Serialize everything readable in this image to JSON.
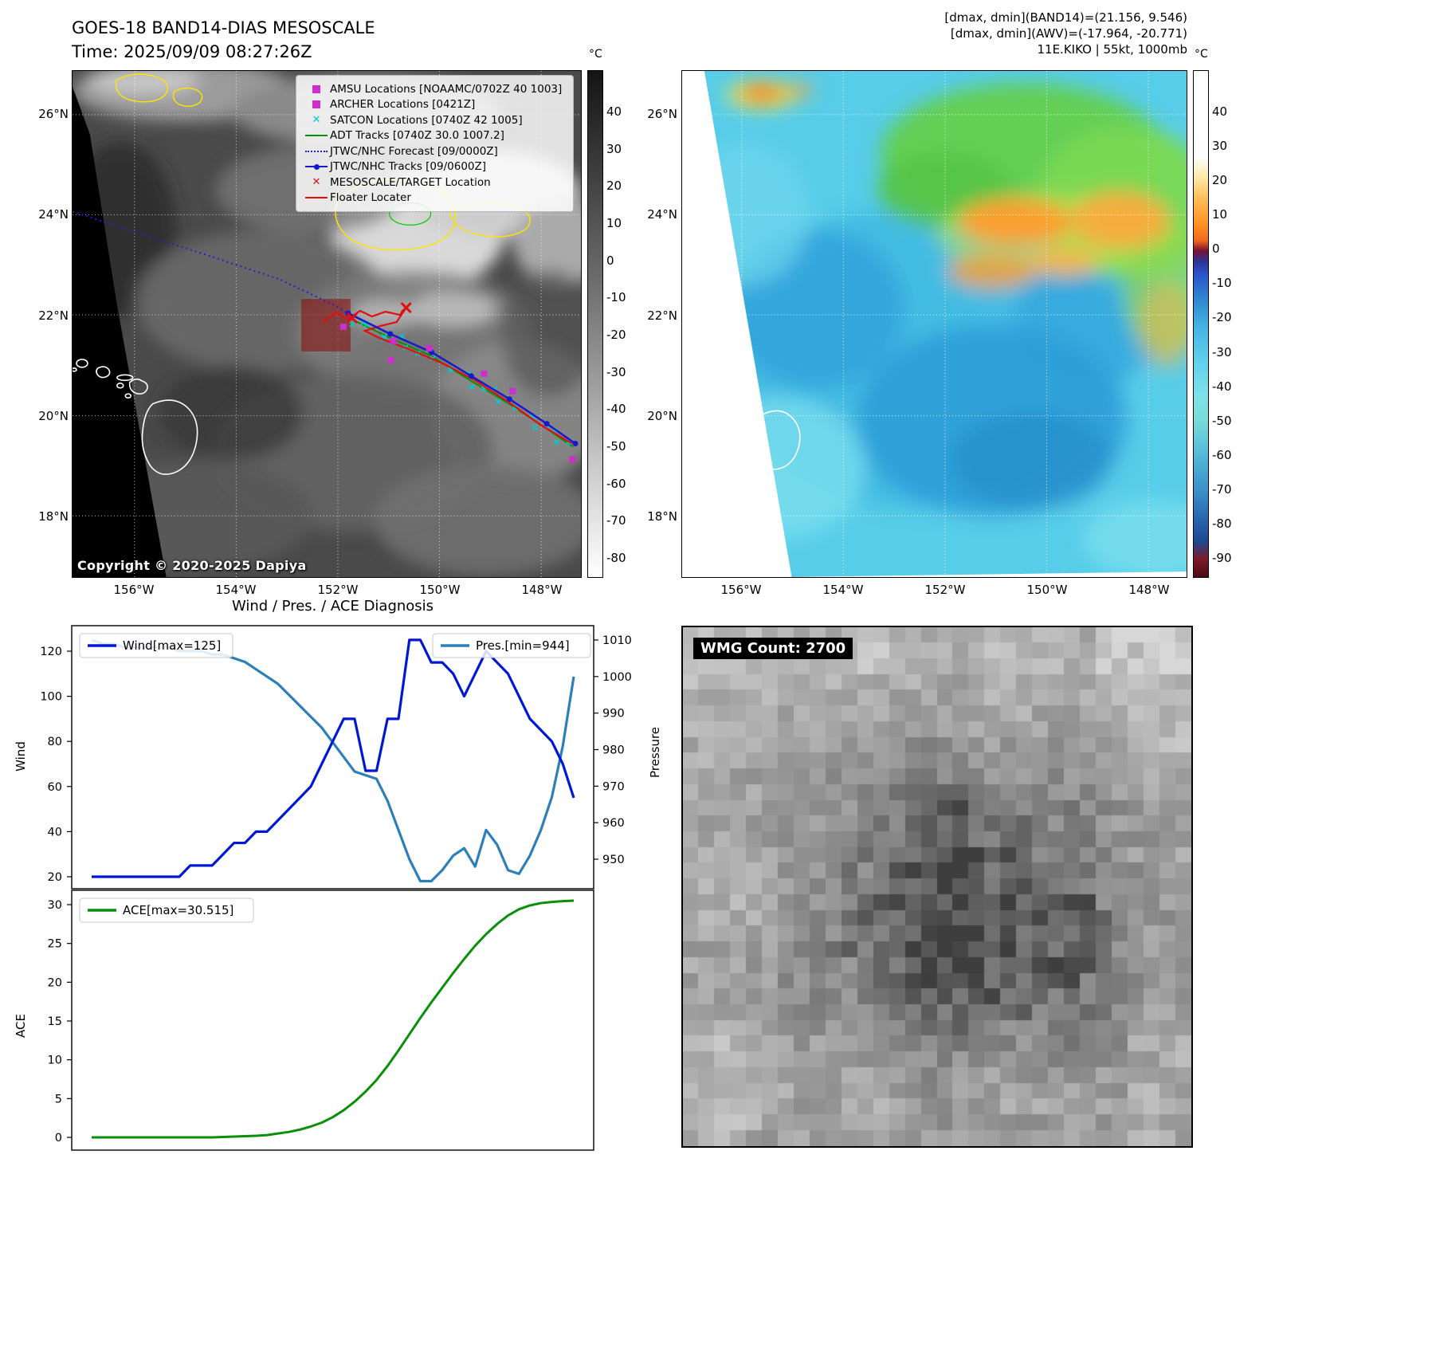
{
  "header": {
    "title1": "GOES-18 BAND14-DIAS MESOSCALE",
    "title2": "Time: 2025/09/09 08:27:26Z",
    "right1": "[dmax, dmin](BAND14)=(21.156, 9.546)",
    "right2": "[dmax, dmin](AWV)=(-17.964, -20.771)",
    "right3": "11E.KIKO | 55kt, 1000mb"
  },
  "maps": {
    "lat_ticks": [
      "26°N",
      "24°N",
      "22°N",
      "20°N",
      "18°N"
    ],
    "lon_ticks": [
      "156°W",
      "154°W",
      "152°W",
      "150°W",
      "148°W"
    ],
    "band14": {
      "colorbar_unit": "°C",
      "colorbar_ticks": [
        40,
        30,
        20,
        10,
        0,
        -10,
        -20,
        -30,
        -40,
        -50,
        -60,
        -70,
        -80
      ],
      "legend": [
        {
          "marker": "square-magenta",
          "label": "AMSU Locations [NOAAMC/0702Z 40 1003]"
        },
        {
          "marker": "square-magenta",
          "label": "ARCHER Locations [0421Z]"
        },
        {
          "marker": "x-cyan",
          "label": "SATCON Locations [0740Z 42 1005]"
        },
        {
          "marker": "line-green",
          "label": "ADT Tracks [0740Z 30.0 1007.2]"
        },
        {
          "marker": "dotted-blue",
          "label": "JTWC/NHC Forecast [09/0000Z]"
        },
        {
          "marker": "line-dot-blue",
          "label": "JTWC/NHC Tracks [09/0600Z]"
        },
        {
          "marker": "x-red",
          "label": "MESOSCALE/TARGET Location"
        },
        {
          "marker": "line-red",
          "label": "Floater Locater"
        }
      ],
      "copyright": "Copyright © 2020-2025 Dapiya"
    },
    "awv": {
      "colorbar_unit": "°C",
      "colorbar_ticks": [
        40,
        30,
        20,
        10,
        0,
        -10,
        -20,
        -30,
        -40,
        -50,
        -60,
        -70,
        -80,
        -90
      ]
    }
  },
  "charts": {
    "title": "Wind / Pres. / ACE Diagnosis",
    "wind_label": "Wind",
    "pressure_label": "Pressure",
    "ace_label": "ACE"
  },
  "wmg": {
    "label": "WMG Count: 2700"
  },
  "chart_data": [
    {
      "type": "line",
      "title": "Wind / Pres. / ACE Diagnosis",
      "panels": [
        {
          "ylabel_left": "Wind",
          "ylabel_right": "Pressure",
          "yticks_left": [
            20,
            40,
            60,
            80,
            100,
            120
          ],
          "yticks_right": [
            950,
            960,
            970,
            980,
            990,
            1000,
            1010
          ],
          "series": [
            {
              "name": "Wind[max=125]",
              "axis": "left",
              "color": "#0018d4",
              "values": [
                20,
                20,
                20,
                20,
                20,
                20,
                20,
                20,
                20,
                25,
                25,
                25,
                30,
                35,
                35,
                40,
                40,
                45,
                50,
                55,
                60,
                70,
                80,
                90,
                90,
                67,
                67,
                90,
                90,
                125,
                125,
                115,
                115,
                110,
                100,
                110,
                120,
                115,
                110,
                100,
                90,
                85,
                80,
                70,
                55
              ]
            },
            {
              "name": "Pres.[min=944]",
              "axis": "right",
              "color": "#2d7fb8",
              "values": [
                1010,
                1009,
                1009,
                1008,
                1008,
                1008,
                1008,
                1008,
                1007,
                1007,
                1007,
                1006,
                1006,
                1005,
                1004,
                1002,
                1000,
                998,
                995,
                992,
                989,
                986,
                982,
                978,
                974,
                973,
                972,
                966,
                958,
                950,
                944,
                944,
                947,
                951,
                953,
                948,
                958,
                954,
                947,
                946,
                951,
                958,
                967,
                981,
                1000
              ]
            }
          ]
        },
        {
          "ylabel_left": "ACE",
          "yticks_left": [
            0,
            5,
            10,
            15,
            20,
            25,
            30
          ],
          "series": [
            {
              "name": "ACE[max=30.515]",
              "axis": "left",
              "color": "#0a8f0a",
              "values": [
                0,
                0,
                0,
                0,
                0,
                0,
                0,
                0,
                0,
                0,
                0,
                0,
                0.05,
                0.1,
                0.15,
                0.2,
                0.3,
                0.5,
                0.7,
                1.0,
                1.4,
                1.9,
                2.6,
                3.5,
                4.6,
                5.9,
                7.4,
                9.2,
                11.2,
                13.3,
                15.4,
                17.4,
                19.3,
                21.2,
                23.0,
                24.7,
                26.2,
                27.5,
                28.6,
                29.4,
                29.9,
                30.2,
                30.35,
                30.45,
                30.515
              ]
            }
          ]
        }
      ]
    },
    {
      "type": "heatmap",
      "name": "band14-ir-satellite-map",
      "xticks": [
        "156°W",
        "154°W",
        "152°W",
        "150°W",
        "148°W"
      ],
      "yticks": [
        "26°N",
        "24°N",
        "22°N",
        "20°N",
        "18°N"
      ],
      "colorbar": {
        "unit": "°C",
        "ticks": [
          40,
          30,
          20,
          10,
          0,
          -10,
          -20,
          -30,
          -40,
          -50,
          -60,
          -70,
          -80
        ]
      }
    },
    {
      "type": "heatmap",
      "name": "awv-color-satellite-map",
      "xticks": [
        "156°W",
        "154°W",
        "152°W",
        "150°W",
        "148°W"
      ],
      "yticks": [
        "26°N",
        "24°N",
        "22°N",
        "20°N",
        "18°N"
      ],
      "colorbar": {
        "unit": "°C",
        "ticks": [
          40,
          30,
          20,
          10,
          0,
          -10,
          -20,
          -30,
          -40,
          -50,
          -60,
          -70,
          -80,
          -90
        ]
      }
    }
  ]
}
